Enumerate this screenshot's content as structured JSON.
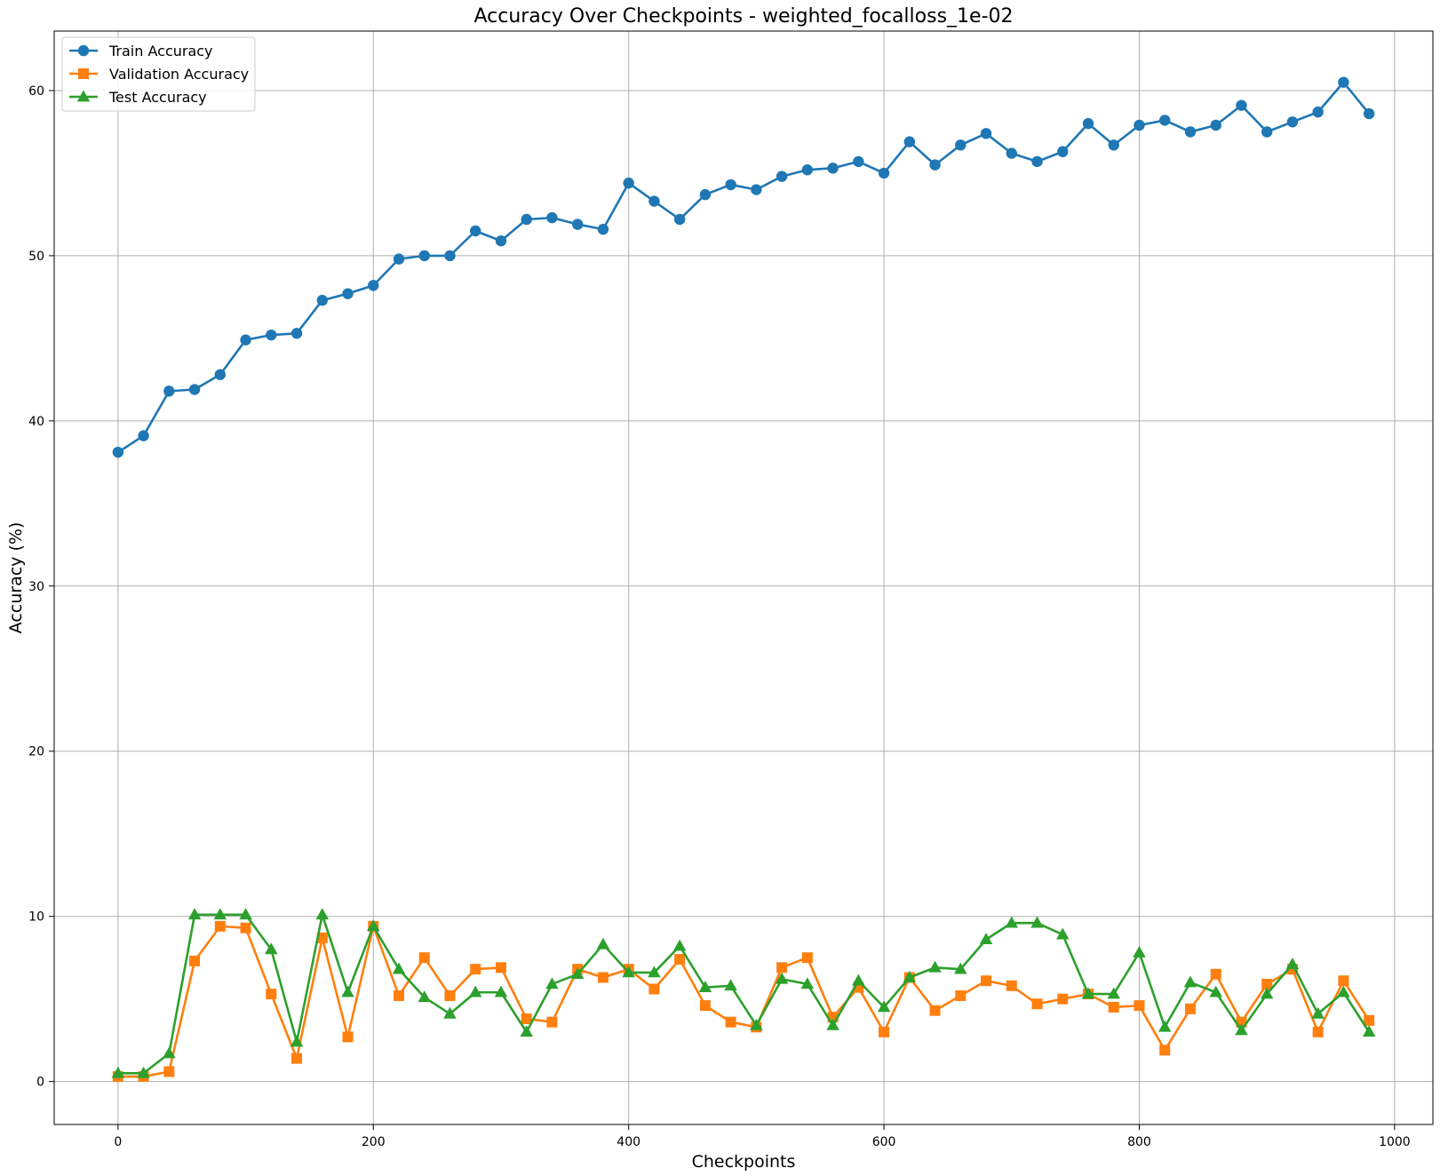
{
  "chart_data": {
    "type": "line",
    "title": "Accuracy Over Checkpoints - weighted_focalloss_1e-02",
    "xlabel": "Checkpoints",
    "ylabel": "Accuracy (%)",
    "xlim": [
      -50,
      1030
    ],
    "ylim": [
      -2.6,
      63.6
    ],
    "x_ticks": [
      0,
      200,
      400,
      600,
      800,
      1000
    ],
    "y_ticks": [
      0,
      10,
      20,
      30,
      40,
      50,
      60
    ],
    "grid": true,
    "legend_position": "upper-left",
    "x": [
      0,
      20,
      40,
      60,
      80,
      100,
      120,
      140,
      160,
      180,
      200,
      220,
      240,
      260,
      280,
      300,
      320,
      340,
      360,
      380,
      400,
      420,
      440,
      460,
      480,
      500,
      520,
      540,
      560,
      580,
      600,
      620,
      640,
      660,
      680,
      700,
      720,
      740,
      760,
      780,
      800,
      820,
      840,
      860,
      880,
      900,
      920,
      940,
      960,
      980
    ],
    "series": [
      {
        "name": "Train Accuracy",
        "color": "#1f77b4",
        "marker": "circle",
        "values": [
          38.1,
          39.1,
          41.8,
          41.9,
          42.8,
          44.9,
          45.2,
          45.3,
          47.3,
          47.7,
          48.2,
          49.8,
          50.0,
          50.0,
          51.5,
          50.9,
          52.2,
          52.3,
          51.9,
          51.6,
          54.4,
          53.3,
          52.2,
          53.7,
          54.3,
          54.0,
          54.8,
          55.2,
          55.3,
          55.7,
          55.0,
          56.9,
          55.5,
          56.7,
          57.4,
          56.2,
          55.7,
          56.3,
          58.0,
          56.7,
          57.9,
          58.2,
          57.5,
          57.9,
          59.1,
          57.5,
          58.1,
          58.7,
          60.5,
          58.6
        ]
      },
      {
        "name": "Validation Accuracy",
        "color": "#ff7f0e",
        "marker": "square",
        "values": [
          0.3,
          0.3,
          0.6,
          7.3,
          9.4,
          9.3,
          5.3,
          1.4,
          8.7,
          2.7,
          9.4,
          5.2,
          7.5,
          5.2,
          6.8,
          6.9,
          3.8,
          3.6,
          6.8,
          6.3,
          6.8,
          5.6,
          7.4,
          4.6,
          3.6,
          3.3,
          6.9,
          7.5,
          3.9,
          5.7,
          3.0,
          6.3,
          4.3,
          5.2,
          6.1,
          5.8,
          4.7,
          5.0,
          5.3,
          4.5,
          4.6,
          1.9,
          4.4,
          6.5,
          3.6,
          5.9,
          6.8,
          3.0,
          6.1,
          3.7
        ]
      },
      {
        "name": "Test Accuracy",
        "color": "#2ca02c",
        "marker": "triangle",
        "values": [
          0.5,
          0.5,
          1.7,
          10.1,
          10.1,
          10.1,
          8.0,
          2.4,
          10.1,
          5.4,
          9.4,
          6.8,
          5.1,
          4.1,
          5.4,
          5.4,
          3.0,
          5.9,
          6.5,
          8.3,
          6.6,
          6.6,
          8.2,
          5.7,
          5.8,
          3.4,
          6.2,
          5.9,
          3.4,
          6.1,
          4.5,
          6.3,
          6.9,
          6.8,
          8.6,
          9.6,
          9.6,
          8.9,
          5.3,
          5.3,
          7.8,
          3.3,
          6.0,
          5.4,
          3.1,
          5.3,
          7.1,
          4.1,
          5.4,
          3.0
        ]
      }
    ]
  }
}
